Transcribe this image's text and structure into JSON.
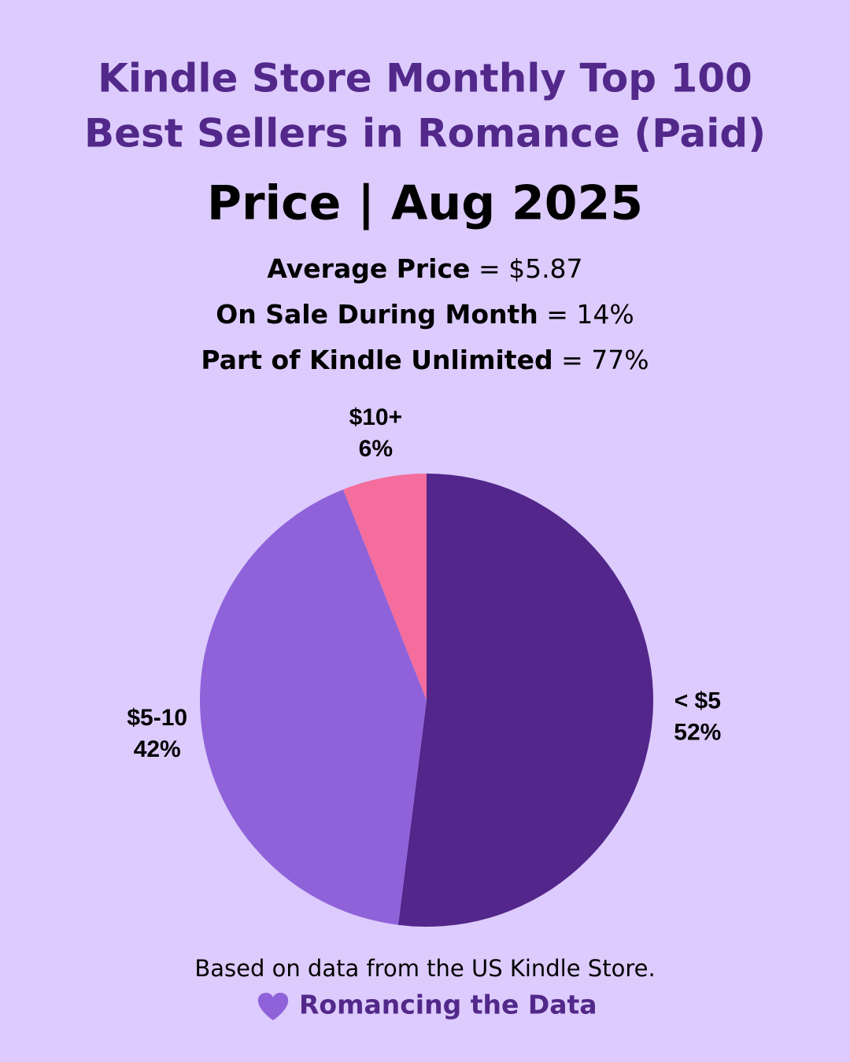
{
  "chart_data": {
    "type": "pie",
    "title": [
      "Kindle Store Monthly Top 100",
      "Best Sellers in Romance (Paid)"
    ],
    "subtitle": "Price | Aug 2025",
    "annotations": [
      {
        "label": "Average Price",
        "value": "= $5.87"
      },
      {
        "label": "On Sale During Month",
        "value": "= 14%"
      },
      {
        "label": "Part of Kindle Unlimited",
        "value": "= 77%"
      }
    ],
    "categories": [
      "< $5",
      "$5-10",
      "$10+"
    ],
    "values": [
      52,
      42,
      6
    ],
    "value_labels": [
      "52%",
      "42%",
      "6%"
    ],
    "colors": [
      "#52268a",
      "#8f62d9",
      "#f46d9c"
    ],
    "footer": "Based on data from the US Kindle Store.",
    "credit": "Romancing the Data"
  }
}
